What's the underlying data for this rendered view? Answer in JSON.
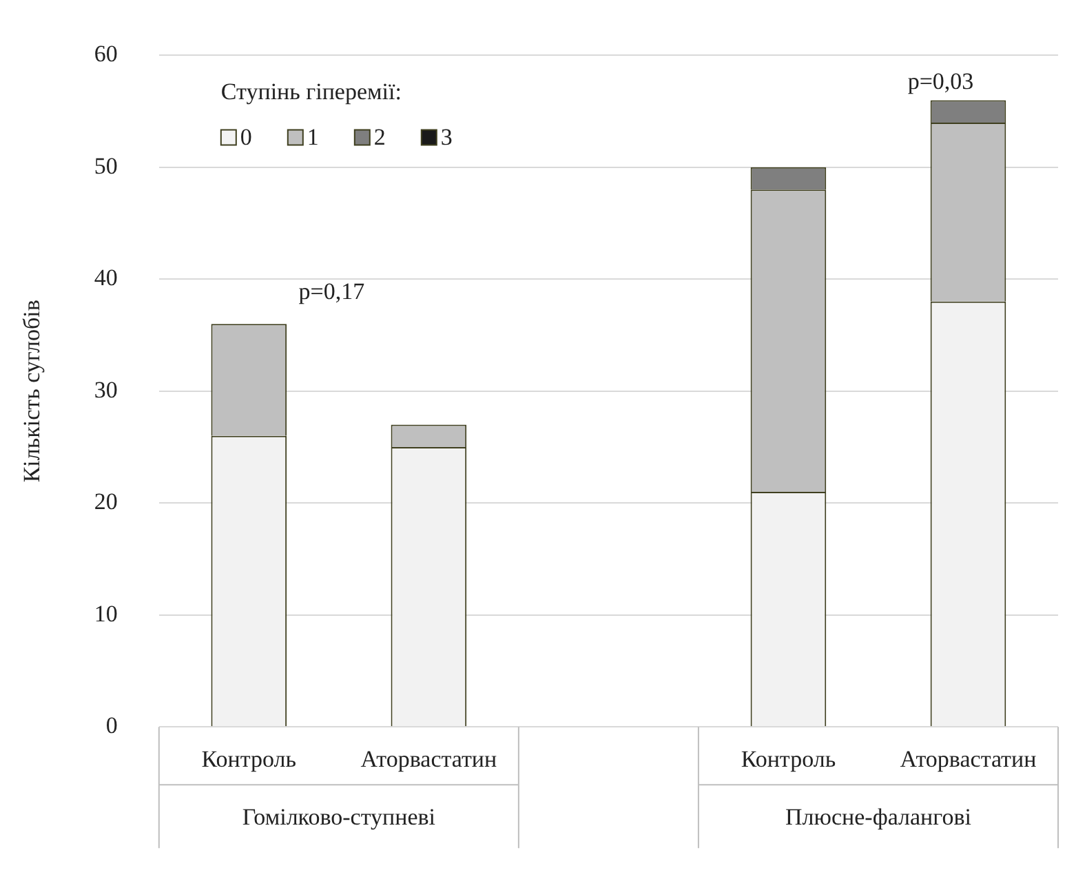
{
  "chart_data": {
    "type": "bar",
    "stacked": true,
    "ylabel": "Кількість суглобів",
    "legend_title": "Ступінь гіперемії:",
    "legend": "top left",
    "grid": "y",
    "categories": [
      "Контроль",
      "Аторвастатин",
      null,
      "Контроль",
      "Аторвастатин"
    ],
    "series": [
      {
        "name": "0",
        "color": "#f2f2f2",
        "values": [
          26,
          25,
          null,
          21,
          38
        ]
      },
      {
        "name": "1",
        "color": "#bfbfbf",
        "values": [
          10,
          2,
          null,
          27,
          16
        ]
      },
      {
        "name": "2",
        "color": "#7f7f7f",
        "values": [
          0,
          0,
          null,
          2,
          2
        ]
      },
      {
        "name": "3",
        "color": "#1a1a1a",
        "values": [
          0,
          0,
          null,
          0,
          0
        ]
      }
    ],
    "ylim": [
      0,
      60
    ],
    "yticks": [
      0,
      10,
      20,
      30,
      40,
      50,
      60
    ],
    "annotations": [
      "p=0,17",
      "p=0,03",
      "Гомілково-ступневі",
      "Плюсне-фалангові"
    ]
  }
}
